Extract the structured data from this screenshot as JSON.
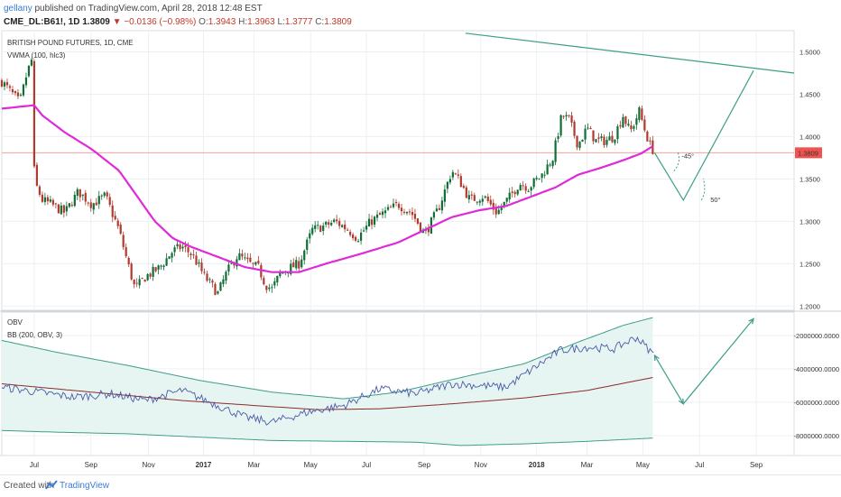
{
  "header": {
    "user": "gellany",
    "published": "published on TradingView.com, April 28, 2018 12:48 EST",
    "symbol": "CME_DL:B61!, 1D",
    "last": "1.3809",
    "change": "−0.0136 (−0.98%)",
    "o_label": "O:",
    "o_value": "1.3943",
    "h_label": "H:",
    "h_value": "1.3963",
    "l_label": "L:",
    "l_value": "1.3777",
    "c_label": "C:",
    "c_value": "1.3809"
  },
  "footer": {
    "created": "Created with",
    "brand": "TradingView"
  },
  "colors": {
    "candle_up": "#0e6e36",
    "candle_down": "#b03a2e",
    "vwma": "#e02ad8",
    "price_line": "#f0a59d",
    "price_tag": "#ef5350",
    "drawing": "#3d9e88",
    "obv": "#4a5aa8",
    "bb_basis": "#8b2b2b",
    "bb_band": "#3d9e88",
    "bb_fill": "#e6f5f2",
    "grid": "#edf0f3"
  },
  "chart_data": [
    {
      "type": "candlestick",
      "title": "BRITISH POUND FUTURES, 1D, CME",
      "indicator": "VWMA (100, hlc3)",
      "x_ticks": [
        "Jul",
        "Sep",
        "Nov",
        "2017",
        "Mar",
        "May",
        "Jul",
        "Sep",
        "Nov",
        "2018",
        "Mar",
        "May",
        "Jul",
        "Sep"
      ],
      "y_ticks": [
        "1.5000",
        "1.4500",
        "1.4000",
        "1.3500",
        "1.3000",
        "1.2500",
        "1.2000"
      ],
      "ylim": [
        1.195,
        1.525
      ],
      "last_price": 1.3809,
      "last_price_label": "1.3809",
      "close_anchors": [
        {
          "t": 0,
          "v": 1.465
        },
        {
          "t": 20,
          "v": 1.44
        },
        {
          "t": 28,
          "v": 1.475
        },
        {
          "t": 33,
          "v": 1.49
        },
        {
          "t": 35,
          "v": 1.375
        },
        {
          "t": 37,
          "v": 1.345
        },
        {
          "t": 45,
          "v": 1.325
        },
        {
          "t": 55,
          "v": 1.32
        },
        {
          "t": 70,
          "v": 1.31
        },
        {
          "t": 85,
          "v": 1.335
        },
        {
          "t": 100,
          "v": 1.32
        },
        {
          "t": 115,
          "v": 1.33
        },
        {
          "t": 130,
          "v": 1.29
        },
        {
          "t": 140,
          "v": 1.25
        },
        {
          "t": 148,
          "v": 1.22
        },
        {
          "t": 160,
          "v": 1.235
        },
        {
          "t": 175,
          "v": 1.245
        },
        {
          "t": 190,
          "v": 1.265
        },
        {
          "t": 200,
          "v": 1.27
        },
        {
          "t": 212,
          "v": 1.26
        },
        {
          "t": 225,
          "v": 1.235
        },
        {
          "t": 240,
          "v": 1.215
        },
        {
          "t": 250,
          "v": 1.24
        },
        {
          "t": 262,
          "v": 1.26
        },
        {
          "t": 275,
          "v": 1.25
        },
        {
          "t": 285,
          "v": 1.245
        },
        {
          "t": 293,
          "v": 1.225
        },
        {
          "t": 300,
          "v": 1.22
        },
        {
          "t": 310,
          "v": 1.24
        },
        {
          "t": 330,
          "v": 1.25
        },
        {
          "t": 345,
          "v": 1.29
        },
        {
          "t": 360,
          "v": 1.295
        },
        {
          "t": 370,
          "v": 1.3
        },
        {
          "t": 385,
          "v": 1.29
        },
        {
          "t": 395,
          "v": 1.28
        },
        {
          "t": 410,
          "v": 1.3
        },
        {
          "t": 425,
          "v": 1.31
        },
        {
          "t": 440,
          "v": 1.32
        },
        {
          "t": 455,
          "v": 1.31
        },
        {
          "t": 470,
          "v": 1.285
        },
        {
          "t": 485,
          "v": 1.315
        },
        {
          "t": 500,
          "v": 1.36
        },
        {
          "t": 510,
          "v": 1.345
        },
        {
          "t": 520,
          "v": 1.325
        },
        {
          "t": 535,
          "v": 1.33
        },
        {
          "t": 550,
          "v": 1.31
        },
        {
          "t": 565,
          "v": 1.33
        },
        {
          "t": 575,
          "v": 1.345
        },
        {
          "t": 585,
          "v": 1.34
        },
        {
          "t": 600,
          "v": 1.355
        },
        {
          "t": 612,
          "v": 1.375
        },
        {
          "t": 622,
          "v": 1.425
        },
        {
          "t": 630,
          "v": 1.42
        },
        {
          "t": 640,
          "v": 1.39
        },
        {
          "t": 650,
          "v": 1.41
        },
        {
          "t": 660,
          "v": 1.395
        },
        {
          "t": 670,
          "v": 1.395
        },
        {
          "t": 680,
          "v": 1.4
        },
        {
          "t": 690,
          "v": 1.425
        },
        {
          "t": 698,
          "v": 1.405
        },
        {
          "t": 708,
          "v": 1.43
        },
        {
          "t": 715,
          "v": 1.405
        },
        {
          "t": 720,
          "v": 1.39
        },
        {
          "t": 725,
          "v": 1.381
        }
      ],
      "vwma_anchors": [
        {
          "t": 0,
          "v": 1.433
        },
        {
          "t": 36,
          "v": 1.437
        },
        {
          "t": 45,
          "v": 1.425
        },
        {
          "t": 70,
          "v": 1.405
        },
        {
          "t": 100,
          "v": 1.385
        },
        {
          "t": 130,
          "v": 1.36
        },
        {
          "t": 150,
          "v": 1.33
        },
        {
          "t": 170,
          "v": 1.3
        },
        {
          "t": 190,
          "v": 1.28
        },
        {
          "t": 210,
          "v": 1.27
        },
        {
          "t": 240,
          "v": 1.258
        },
        {
          "t": 270,
          "v": 1.246
        },
        {
          "t": 300,
          "v": 1.24
        },
        {
          "t": 330,
          "v": 1.24
        },
        {
          "t": 360,
          "v": 1.25
        },
        {
          "t": 400,
          "v": 1.262
        },
        {
          "t": 440,
          "v": 1.275
        },
        {
          "t": 470,
          "v": 1.29
        },
        {
          "t": 500,
          "v": 1.305
        },
        {
          "t": 530,
          "v": 1.313
        },
        {
          "t": 560,
          "v": 1.318
        },
        {
          "t": 590,
          "v": 1.33
        },
        {
          "t": 615,
          "v": 1.34
        },
        {
          "t": 640,
          "v": 1.355
        },
        {
          "t": 665,
          "v": 1.363
        },
        {
          "t": 690,
          "v": 1.372
        },
        {
          "t": 710,
          "v": 1.38
        },
        {
          "t": 725,
          "v": 1.39
        }
      ],
      "annotations": [
        {
          "label": "-45°"
        },
        {
          "label": "50°"
        }
      ]
    },
    {
      "type": "line",
      "title": "OBV",
      "indicator": "BB (200, OBV, 3)",
      "y_ticks": [
        "-2000000.0000",
        "-4000000.0000",
        "-6000000.0000",
        "-8000000.0000"
      ],
      "ylim": [
        -9200000,
        -600000
      ],
      "obv_anchors": [
        {
          "t": 0,
          "v": -5100000
        },
        {
          "t": 40,
          "v": -5400000
        },
        {
          "t": 80,
          "v": -5700000
        },
        {
          "t": 120,
          "v": -5500000
        },
        {
          "t": 160,
          "v": -5900000
        },
        {
          "t": 200,
          "v": -5300000
        },
        {
          "t": 240,
          "v": -6200000
        },
        {
          "t": 270,
          "v": -6900000
        },
        {
          "t": 300,
          "v": -7200000
        },
        {
          "t": 340,
          "v": -6600000
        },
        {
          "t": 380,
          "v": -6200000
        },
        {
          "t": 420,
          "v": -5200000
        },
        {
          "t": 460,
          "v": -5500000
        },
        {
          "t": 500,
          "v": -4900000
        },
        {
          "t": 530,
          "v": -5000000
        },
        {
          "t": 560,
          "v": -5100000
        },
        {
          "t": 590,
          "v": -4000000
        },
        {
          "t": 620,
          "v": -2900000
        },
        {
          "t": 650,
          "v": -2700000
        },
        {
          "t": 680,
          "v": -2800000
        },
        {
          "t": 705,
          "v": -2100000
        },
        {
          "t": 725,
          "v": -3200000
        }
      ],
      "basis_anchors": [
        {
          "t": 0,
          "v": -4900000
        },
        {
          "t": 60,
          "v": -5200000
        },
        {
          "t": 120,
          "v": -5500000
        },
        {
          "t": 200,
          "v": -5900000
        },
        {
          "t": 280,
          "v": -6200000
        },
        {
          "t": 350,
          "v": -6450000
        },
        {
          "t": 420,
          "v": -6400000
        },
        {
          "t": 500,
          "v": -6100000
        },
        {
          "t": 580,
          "v": -5750000
        },
        {
          "t": 650,
          "v": -5300000
        },
        {
          "t": 725,
          "v": -4500000
        }
      ],
      "upper_anchors": [
        {
          "t": 0,
          "v": -2300000
        },
        {
          "t": 60,
          "v": -3000000
        },
        {
          "t": 140,
          "v": -3800000
        },
        {
          "t": 220,
          "v": -4700000
        },
        {
          "t": 300,
          "v": -5400000
        },
        {
          "t": 380,
          "v": -5800000
        },
        {
          "t": 440,
          "v": -5400000
        },
        {
          "t": 520,
          "v": -4400000
        },
        {
          "t": 580,
          "v": -3700000
        },
        {
          "t": 640,
          "v": -2400000
        },
        {
          "t": 690,
          "v": -1400000
        },
        {
          "t": 725,
          "v": -900000
        }
      ],
      "lower_anchors": [
        {
          "t": 0,
          "v": -7700000
        },
        {
          "t": 60,
          "v": -7800000
        },
        {
          "t": 140,
          "v": -7900000
        },
        {
          "t": 220,
          "v": -8100000
        },
        {
          "t": 300,
          "v": -8300000
        },
        {
          "t": 380,
          "v": -8350000
        },
        {
          "t": 460,
          "v": -8400000
        },
        {
          "t": 510,
          "v": -8600000
        },
        {
          "t": 580,
          "v": -8500000
        },
        {
          "t": 650,
          "v": -8350000
        },
        {
          "t": 725,
          "v": -8150000
        }
      ],
      "projection": [
        {
          "t": 725,
          "v": -3200000
        },
        {
          "t": 757,
          "v": -6100000
        },
        {
          "t": 835,
          "v": -1000000
        }
      ]
    }
  ]
}
